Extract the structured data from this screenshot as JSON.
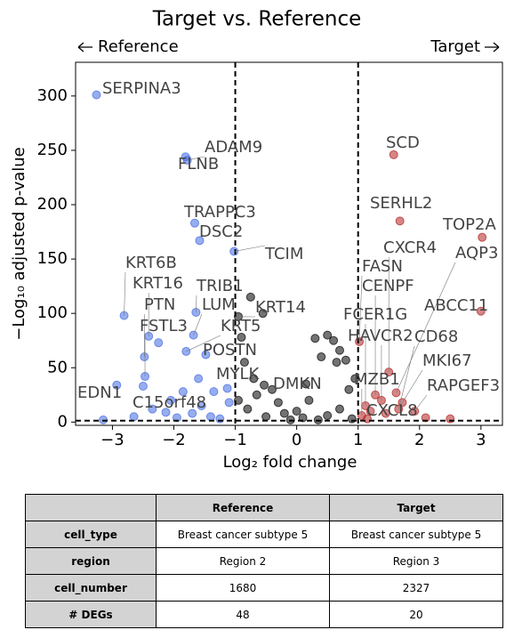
{
  "chart_data": {
    "type": "scatter",
    "title": "Target vs. Reference",
    "left_label": "Reference",
    "right_label": "Target",
    "x_label": "Log₂ fold change",
    "y_label": "−Log₁₀ adjusted p-value",
    "xlim": [
      -3.6,
      3.35
    ],
    "ylim": [
      -3,
      331
    ],
    "xticks": [
      {
        "value": -3,
        "label": "−3"
      },
      {
        "value": -2,
        "label": "−2"
      },
      {
        "value": -1,
        "label": "−1"
      },
      0,
      1,
      2,
      3
    ],
    "yticks": [
      0,
      50,
      100,
      150,
      200,
      250,
      300
    ],
    "vlines": [
      -1,
      1
    ],
    "hline": 1.3,
    "series": [
      {
        "color": "#4169e1",
        "x": [
          -3.26,
          -1.78,
          -1.81,
          -1.66,
          -1.58,
          -1.02,
          -2.81,
          -2.41,
          -2.48,
          -2.47,
          -1.64,
          -1.68,
          -1.8,
          -1.48,
          -1.13,
          -2.93,
          -2.13,
          -2.25,
          -2.5,
          -2.05,
          -1.85,
          -1.55,
          -1.7,
          -1.4,
          -2.35,
          -1.95,
          -1.25,
          -3.15,
          -2.65,
          -1.1,
          -1.6,
          -1.35
        ],
        "values": [
          301,
          241,
          244,
          183,
          167,
          157,
          98,
          79,
          60,
          42,
          101,
          80,
          65,
          62,
          31,
          34,
          9,
          73,
          33,
          20,
          28,
          15,
          8,
          5,
          12,
          4,
          3,
          2,
          5,
          18,
          40,
          28
        ],
        "labels": [
          "SERPINA3",
          "ADAM9",
          "FLNB",
          "TRAPPC3",
          "DSC2",
          "TCIM",
          "KRT6B",
          "KRT16",
          "PTN",
          "FSTL3",
          "TRIB1",
          "LUM",
          "KRT5",
          "POSTN",
          "MYLK",
          "EDN1",
          "C15orf48",
          null,
          null,
          null,
          null,
          null,
          null,
          null,
          null,
          null,
          null,
          null,
          null,
          null,
          null,
          null
        ]
      },
      {
        "color": "#000000",
        "x": [
          -0.95,
          -0.53,
          -0.75,
          -0.55,
          -0.9,
          -0.85,
          -0.7,
          -0.4,
          -0.65,
          -0.3,
          0.3,
          0.5,
          0.6,
          0.7,
          0.4,
          0.65,
          0.8,
          0.95,
          0.85,
          0.2,
          0.0,
          -0.2,
          0.1,
          0.5,
          -0.5,
          0.7,
          -0.8,
          0.35,
          -0.1,
          0.9,
          -0.95,
          0.15
        ],
        "values": [
          97,
          34,
          115,
          100,
          78,
          55,
          40,
          30,
          25,
          18,
          77,
          80,
          75,
          66,
          60,
          55,
          57,
          40,
          30,
          20,
          10,
          8,
          4,
          6,
          5,
          12,
          12,
          2,
          2,
          3,
          20,
          35
        ],
        "labels": [
          "KRT14",
          "DMKN",
          null,
          null,
          null,
          null,
          null,
          null,
          null,
          null,
          null,
          null,
          null,
          null,
          null,
          null,
          null,
          null,
          null,
          null,
          null,
          null,
          null,
          null,
          null,
          null,
          null,
          null,
          null,
          null,
          null,
          null
        ]
      },
      {
        "color": "#b22222",
        "x": [
          1.58,
          1.68,
          3.02,
          1.5,
          1.62,
          1.02,
          3.0,
          1.28,
          1.12,
          1.38,
          1.66,
          1.72,
          1.92,
          1.06,
          1.15,
          1.45,
          1.2,
          2.1,
          2.5
        ],
        "values": [
          246,
          185,
          170,
          46,
          27,
          74,
          102,
          25,
          15,
          20,
          12,
          18,
          10,
          6,
          3,
          8,
          10,
          4,
          3
        ],
        "labels": [
          "SCD",
          "SERHL2",
          "TOP2A",
          "CXCR4",
          "AQP3",
          "FASN",
          "ABCC11",
          "CENPF",
          "FCER1G",
          "HAVCR2",
          "CD68",
          "MKI67",
          "RAPGEF3",
          "MZB1",
          "CXCL8",
          null,
          null,
          null,
          null
        ]
      }
    ]
  },
  "table": {
    "header": [
      "Reference",
      "Target"
    ],
    "rows": [
      [
        "cell_type",
        "Breast cancer subtype 5",
        "Breast cancer subtype 5"
      ],
      [
        "region",
        "Region 2",
        "Region 3"
      ],
      [
        "cell_number",
        "1680",
        "2327"
      ],
      [
        "# DEGs",
        "48",
        "20"
      ]
    ]
  }
}
